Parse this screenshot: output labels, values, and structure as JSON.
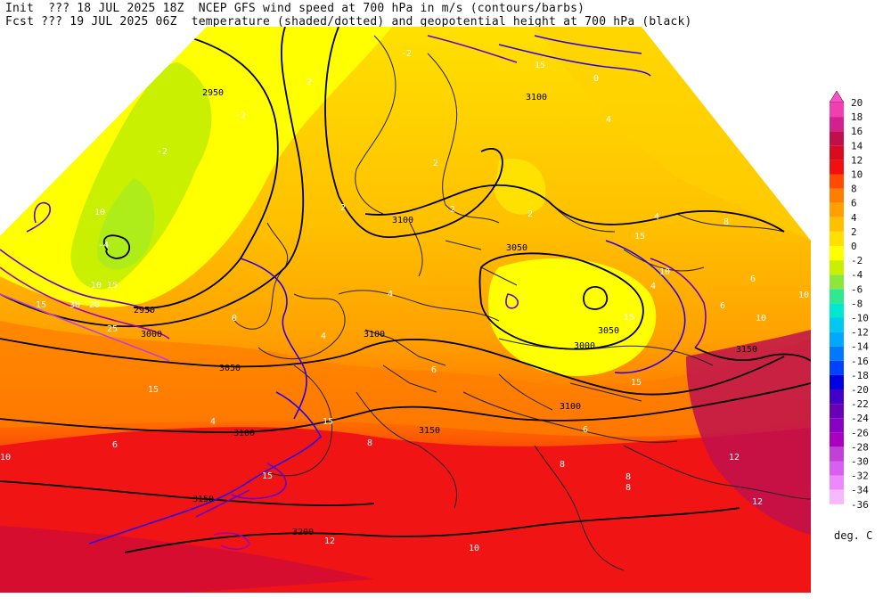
{
  "header": {
    "line1": "Init  ??? 18 JUL 2025 18Z  NCEP GFS wind speed at 700 hPa in m/s (contours/barbs)",
    "line2": "Fcst ??? 19 JUL 2025 06Z  temperature (shaded/dotted) and geopotential height at 700 hPa (black)"
  },
  "colorbar": {
    "unit": "deg. C",
    "levels": [
      {
        "label": "20",
        "color": "#ff4fc8"
      },
      {
        "label": "18",
        "color": "#f040b0"
      },
      {
        "label": "16",
        "color": "#d4208c"
      },
      {
        "label": "14",
        "color": "#c0104c"
      },
      {
        "label": "12",
        "color": "#d80c20"
      },
      {
        "label": "10",
        "color": "#f01010"
      },
      {
        "label": "8",
        "color": "#ff4a00"
      },
      {
        "label": "6",
        "color": "#ff7e00"
      },
      {
        "label": "4",
        "color": "#ffa000"
      },
      {
        "label": "2",
        "color": "#ffc000"
      },
      {
        "label": "0",
        "color": "#ffe000"
      },
      {
        "label": "-2",
        "color": "#ffff00"
      },
      {
        "label": "-4",
        "color": "#c8f000"
      },
      {
        "label": "-6",
        "color": "#8ce63c"
      },
      {
        "label": "-8",
        "color": "#30e890"
      },
      {
        "label": "-10",
        "color": "#00e8d0"
      },
      {
        "label": "-12",
        "color": "#00c8f0"
      },
      {
        "label": "-14",
        "color": "#00a8ff"
      },
      {
        "label": "-16",
        "color": "#0078ff"
      },
      {
        "label": "-18",
        "color": "#0040ff"
      },
      {
        "label": "-20",
        "color": "#0000e0"
      },
      {
        "label": "-22",
        "color": "#4000c8"
      },
      {
        "label": "-24",
        "color": "#6800b8"
      },
      {
        "label": "-26",
        "color": "#8800c0"
      },
      {
        "label": "-28",
        "color": "#a800c0"
      },
      {
        "label": "-30",
        "color": "#c040d8"
      },
      {
        "label": "-32",
        "color": "#d860f0"
      },
      {
        "label": "-34",
        "color": "#ee88ff"
      },
      {
        "label": "-36",
        "color": "#f8b8ff"
      }
    ]
  },
  "map_labels": {
    "geopotential": [
      "2950",
      "2950",
      "3000",
      "3050",
      "3100",
      "3100",
      "3050",
      "3100",
      "3000",
      "3050",
      "3100",
      "3150",
      "3100",
      "3150",
      "3150",
      "3200"
    ],
    "wind_speed": [
      "10",
      "10",
      "15",
      "15",
      "20",
      "25",
      "30",
      "15",
      "15",
      "15",
      "15",
      "15",
      "10",
      "15",
      "15"
    ],
    "temperature": [
      "-2",
      "-2",
      "-4",
      "0",
      "2",
      "2",
      "2",
      "2",
      "-2",
      "0",
      "4",
      "4",
      "2",
      "4",
      "4",
      "4",
      "6",
      "8",
      "6",
      "10",
      "10",
      "6",
      "8",
      "8",
      "8",
      "10",
      "12",
      "12",
      "10",
      "12",
      "8",
      "6",
      "4",
      "6"
    ]
  }
}
